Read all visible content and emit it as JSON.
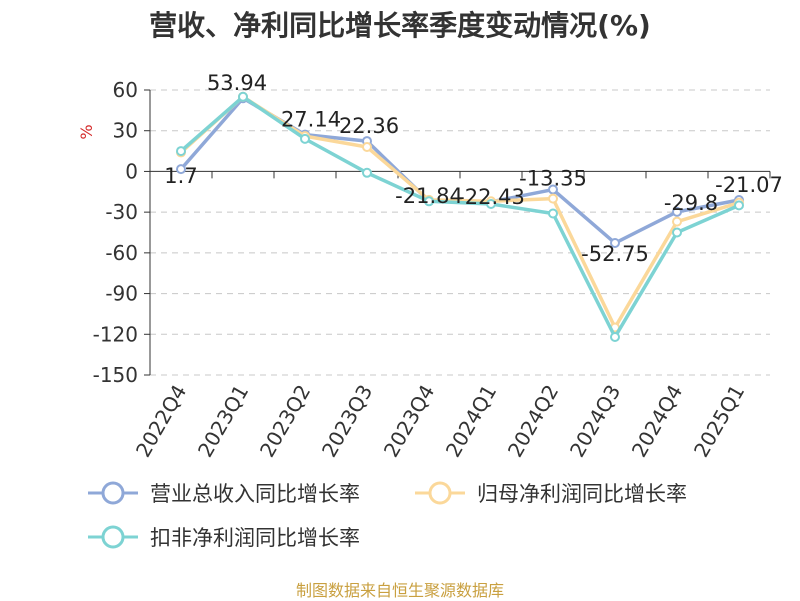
{
  "title": "营收、净利同比增长率季度变动情况(%)",
  "footer": "制图数据来自恒生聚源数据库",
  "chart_data": {
    "type": "line",
    "title": "营收、净利同比增长率季度变动情况(%)",
    "ylabel": "%",
    "ylim": [
      -150,
      60
    ],
    "yticks": [
      60,
      30,
      0,
      -30,
      -60,
      -90,
      -120,
      -150
    ],
    "grid": true,
    "legend_position": "bottom",
    "categories": [
      "2022Q4",
      "2023Q1",
      "2023Q2",
      "2023Q3",
      "2023Q4",
      "2024Q1",
      "2024Q2",
      "2024Q3",
      "2024Q4",
      "2025Q1"
    ],
    "series": [
      {
        "name": "营业总收入同比增长率",
        "color": "#8fa8d8",
        "values": [
          1.7,
          53.94,
          27.14,
          22.36,
          -21.84,
          -22.43,
          -13.35,
          -52.75,
          -29.8,
          -21.07
        ],
        "labels": [
          "1.7",
          "53.94",
          "27.14",
          "22.36",
          "-21.84",
          "-22.43",
          "-13.35",
          "-52.75",
          "-29.8",
          "-21.07"
        ]
      },
      {
        "name": "归母净利润同比增长率",
        "color": "#fbd89a",
        "values": [
          14,
          55,
          26,
          18,
          -21,
          -22,
          -20,
          -115,
          -37,
          -23
        ],
        "labels": []
      },
      {
        "name": "扣非净利润同比增长率",
        "color": "#7dd3d3",
        "values": [
          15,
          55,
          24,
          -1,
          -22,
          -24,
          -31,
          -122,
          -45,
          -25
        ],
        "labels": []
      }
    ]
  }
}
